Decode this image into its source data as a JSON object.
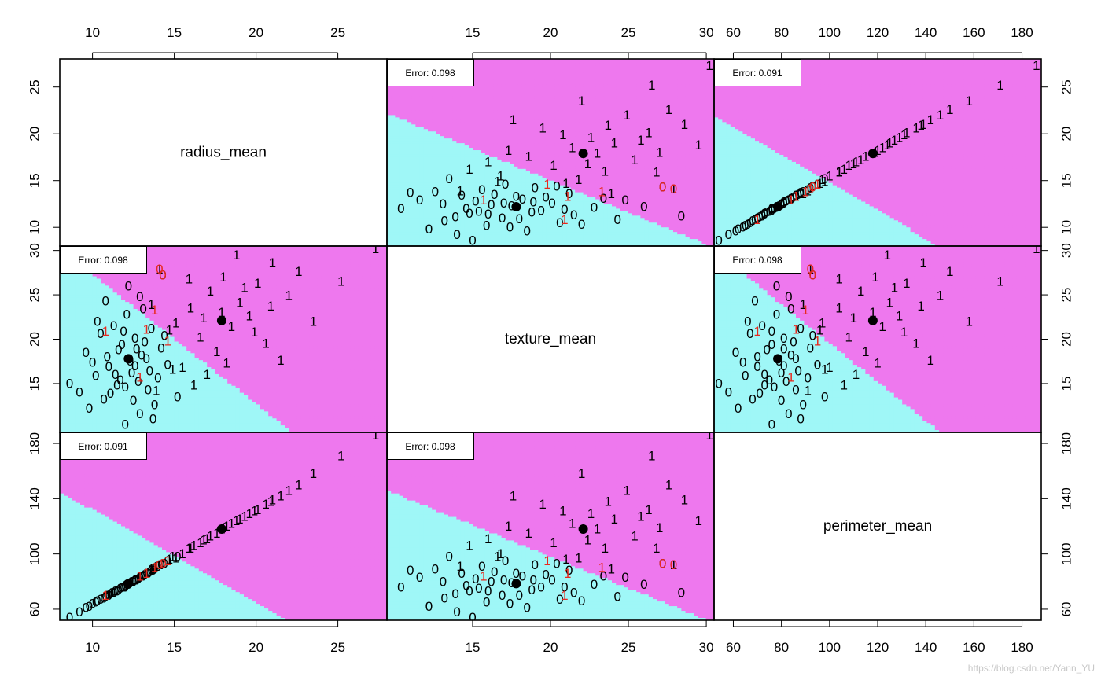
{
  "chart_data": {
    "type": "scatter",
    "subtype": "pairs-matrix-classification",
    "variables": [
      "radius_mean",
      "texture_mean",
      "perimeter_mean"
    ],
    "ranges": {
      "radius_mean": [
        8,
        28
      ],
      "texture_mean": [
        9.5,
        30.5
      ],
      "perimeter_mean": [
        52,
        188
      ]
    },
    "ticks": {
      "radius_mean": [
        10,
        15,
        20,
        25
      ],
      "texture_mean": [
        15,
        20,
        25,
        30
      ],
      "perimeter_mean": [
        60,
        80,
        100,
        120,
        140,
        160,
        180
      ],
      "perimeter_mean_left": [
        60,
        100,
        140,
        180
      ],
      "perimeter_mean_right": [
        60,
        100,
        140,
        180
      ]
    },
    "region_colors": {
      "class0": "#9ff7f7",
      "class1": "#ee78ee"
    },
    "misclassified_color": "#e8291e",
    "centroid_color": "#000000",
    "centroids": {
      "class0": {
        "radius_mean": 12.2,
        "texture_mean": 17.8,
        "perimeter_mean": 78.5
      },
      "class1": {
        "radius_mean": 17.9,
        "texture_mean": 22.1,
        "perimeter_mean": 118.0
      }
    },
    "panels": [
      {
        "row": 0,
        "col": 1,
        "x": "texture_mean",
        "y": "radius_mean",
        "error": "Error: 0.098"
      },
      {
        "row": 0,
        "col": 2,
        "x": "perimeter_mean",
        "y": "radius_mean",
        "error": "Error: 0.091"
      },
      {
        "row": 1,
        "col": 0,
        "x": "radius_mean",
        "y": "texture_mean",
        "error": "Error: 0.098"
      },
      {
        "row": 1,
        "col": 2,
        "x": "perimeter_mean",
        "y": "texture_mean",
        "error": "Error: 0.098"
      },
      {
        "row": 2,
        "col": 0,
        "x": "radius_mean",
        "y": "perimeter_mean",
        "error": "Error: 0.091"
      },
      {
        "row": 2,
        "col": 1,
        "x": "texture_mean",
        "y": "perimeter_mean",
        "error": "Error: 0.098"
      }
    ],
    "points": [
      {
        "radius_mean": 12.0,
        "texture_mean": 10.4,
        "perimeter_mean": 76.0,
        "label": "0"
      },
      {
        "radius_mean": 10.7,
        "texture_mean": 13.2,
        "perimeter_mean": 68.0,
        "label": "0"
      },
      {
        "radius_mean": 11.5,
        "texture_mean": 14.8,
        "perimeter_mean": 73.0,
        "label": "0"
      },
      {
        "radius_mean": 12.8,
        "texture_mean": 15.2,
        "perimeter_mean": 82.0,
        "label": "0"
      },
      {
        "radius_mean": 13.5,
        "texture_mean": 16.4,
        "perimeter_mean": 87.0,
        "label": "0"
      },
      {
        "radius_mean": 11.0,
        "texture_mean": 16.9,
        "perimeter_mean": 70.0,
        "label": "0"
      },
      {
        "radius_mean": 12.3,
        "texture_mean": 17.5,
        "perimeter_mean": 79.0,
        "label": "0"
      },
      {
        "radius_mean": 13.0,
        "texture_mean": 18.2,
        "perimeter_mean": 84.0,
        "label": "0"
      },
      {
        "radius_mean": 9.6,
        "texture_mean": 18.5,
        "perimeter_mean": 61.0,
        "label": "0"
      },
      {
        "radius_mean": 14.2,
        "texture_mean": 19.0,
        "perimeter_mean": 92.0,
        "label": "0"
      },
      {
        "radius_mean": 11.8,
        "texture_mean": 19.4,
        "perimeter_mean": 76.0,
        "label": "0"
      },
      {
        "radius_mean": 12.6,
        "texture_mean": 20.1,
        "perimeter_mean": 81.0,
        "label": "0"
      },
      {
        "radius_mean": 10.2,
        "texture_mean": 15.9,
        "perimeter_mean": 65.0,
        "label": "0"
      },
      {
        "radius_mean": 13.4,
        "texture_mean": 14.3,
        "perimeter_mean": 86.0,
        "label": "0"
      },
      {
        "radius_mean": 11.3,
        "texture_mean": 21.5,
        "perimeter_mean": 72.0,
        "label": "0"
      },
      {
        "radius_mean": 12.1,
        "texture_mean": 22.8,
        "perimeter_mean": 78.0,
        "label": "0"
      },
      {
        "radius_mean": 10.8,
        "texture_mean": 24.3,
        "perimeter_mean": 69.0,
        "label": "0"
      },
      {
        "radius_mean": 13.8,
        "texture_mean": 12.6,
        "perimeter_mean": 89.0,
        "label": "0"
      },
      {
        "radius_mean": 9.2,
        "texture_mean": 14.0,
        "perimeter_mean": 58.0,
        "label": "0"
      },
      {
        "radius_mean": 12.9,
        "texture_mean": 11.6,
        "perimeter_mean": 83.0,
        "label": "0"
      },
      {
        "radius_mean": 11.6,
        "texture_mean": 18.8,
        "perimeter_mean": 74.0,
        "label": "0"
      },
      {
        "radius_mean": 14.6,
        "texture_mean": 17.1,
        "perimeter_mean": 95.0,
        "label": "0"
      },
      {
        "radius_mean": 10.5,
        "texture_mean": 20.6,
        "perimeter_mean": 67.0,
        "label": "0"
      },
      {
        "radius_mean": 13.2,
        "texture_mean": 19.7,
        "perimeter_mean": 85.0,
        "label": "0"
      },
      {
        "radius_mean": 12.4,
        "texture_mean": 16.2,
        "perimeter_mean": 80.0,
        "label": "0"
      },
      {
        "radius_mean": 11.1,
        "texture_mean": 13.9,
        "perimeter_mean": 71.0,
        "label": "0"
      },
      {
        "radius_mean": 13.6,
        "texture_mean": 21.2,
        "perimeter_mean": 88.0,
        "label": "0"
      },
      {
        "radius_mean": 12.0,
        "texture_mean": 14.6,
        "perimeter_mean": 77.0,
        "label": "0"
      },
      {
        "radius_mean": 10.0,
        "texture_mean": 17.4,
        "perimeter_mean": 64.0,
        "label": "0"
      },
      {
        "radius_mean": 14.0,
        "texture_mean": 15.6,
        "perimeter_mean": 91.0,
        "label": "0"
      },
      {
        "radius_mean": 12.7,
        "texture_mean": 18.9,
        "perimeter_mean": 81.0,
        "label": "0"
      },
      {
        "radius_mean": 11.4,
        "texture_mean": 16.0,
        "perimeter_mean": 73.0,
        "label": "0"
      },
      {
        "radius_mean": 13.1,
        "texture_mean": 23.4,
        "perimeter_mean": 84.0,
        "label": "0"
      },
      {
        "radius_mean": 9.8,
        "texture_mean": 12.2,
        "perimeter_mean": 62.0,
        "label": "0"
      },
      {
        "radius_mean": 12.5,
        "texture_mean": 13.1,
        "perimeter_mean": 80.0,
        "label": "0"
      },
      {
        "radius_mean": 14.4,
        "texture_mean": 20.4,
        "perimeter_mean": 93.0,
        "label": "0"
      },
      {
        "radius_mean": 11.9,
        "texture_mean": 20.9,
        "perimeter_mean": 76.0,
        "label": "0"
      },
      {
        "radius_mean": 10.9,
        "texture_mean": 18.0,
        "perimeter_mean": 70.0,
        "label": "0"
      },
      {
        "radius_mean": 13.3,
        "texture_mean": 17.8,
        "perimeter_mean": 86.0,
        "label": "0"
      },
      {
        "radius_mean": 12.2,
        "texture_mean": 26.0,
        "perimeter_mean": 78.0,
        "label": "0"
      },
      {
        "radius_mean": 8.6,
        "texture_mean": 15.0,
        "perimeter_mean": 54.0,
        "label": "0"
      },
      {
        "radius_mean": 15.2,
        "texture_mean": 13.5,
        "perimeter_mean": 98.0,
        "label": "0"
      },
      {
        "radius_mean": 12.9,
        "texture_mean": 24.8,
        "perimeter_mean": 83.0,
        "label": "0"
      },
      {
        "radius_mean": 11.2,
        "texture_mean": 28.4,
        "perimeter_mean": 72.0,
        "label": "0"
      },
      {
        "radius_mean": 13.7,
        "texture_mean": 11.0,
        "perimeter_mean": 88.0,
        "label": "0"
      },
      {
        "radius_mean": 10.3,
        "texture_mean": 22.0,
        "perimeter_mean": 66.0,
        "label": "0"
      },
      {
        "radius_mean": 12.6,
        "texture_mean": 17.0,
        "perimeter_mean": 81.0,
        "label": "0"
      },
      {
        "radius_mean": 11.7,
        "texture_mean": 15.4,
        "perimeter_mean": 75.0,
        "label": "0"
      },
      {
        "radius_mean": 14.1,
        "texture_mean": 27.9,
        "perimeter_mean": 92.0,
        "label": "1"
      },
      {
        "radius_mean": 14.3,
        "texture_mean": 27.2,
        "perimeter_mean": 93.0,
        "label": "0"
      },
      {
        "radius_mean": 15.1,
        "texture_mean": 21.8,
        "perimeter_mean": 97.0,
        "label": "1"
      },
      {
        "radius_mean": 16.0,
        "texture_mean": 23.5,
        "perimeter_mean": 104.0,
        "label": "1"
      },
      {
        "radius_mean": 15.5,
        "texture_mean": 16.8,
        "perimeter_mean": 100.0,
        "label": "1"
      },
      {
        "radius_mean": 17.2,
        "texture_mean": 25.4,
        "perimeter_mean": 113.0,
        "label": "1"
      },
      {
        "radius_mean": 16.6,
        "texture_mean": 20.2,
        "perimeter_mean": 108.0,
        "label": "1"
      },
      {
        "radius_mean": 18.0,
        "texture_mean": 27.0,
        "perimeter_mean": 119.0,
        "label": "1"
      },
      {
        "radius_mean": 17.6,
        "texture_mean": 18.6,
        "perimeter_mean": 115.0,
        "label": "1"
      },
      {
        "radius_mean": 19.0,
        "texture_mean": 24.1,
        "perimeter_mean": 125.0,
        "label": "1"
      },
      {
        "radius_mean": 18.5,
        "texture_mean": 21.4,
        "perimeter_mean": 122.0,
        "label": "1"
      },
      {
        "radius_mean": 20.1,
        "texture_mean": 26.3,
        "perimeter_mean": 132.0,
        "label": "1"
      },
      {
        "radius_mean": 19.6,
        "texture_mean": 22.6,
        "perimeter_mean": 129.0,
        "label": "1"
      },
      {
        "radius_mean": 21.0,
        "texture_mean": 28.6,
        "perimeter_mean": 139.0,
        "label": "1"
      },
      {
        "radius_mean": 20.6,
        "texture_mean": 19.5,
        "perimeter_mean": 136.0,
        "label": "1"
      },
      {
        "radius_mean": 22.0,
        "texture_mean": 24.9,
        "perimeter_mean": 146.0,
        "label": "1"
      },
      {
        "radius_mean": 21.5,
        "texture_mean": 17.6,
        "perimeter_mean": 142.0,
        "label": "1"
      },
      {
        "radius_mean": 23.5,
        "texture_mean": 22.0,
        "perimeter_mean": 158.0,
        "label": "1"
      },
      {
        "radius_mean": 25.2,
        "texture_mean": 26.5,
        "perimeter_mean": 171.0,
        "label": "1"
      },
      {
        "radius_mean": 17.0,
        "texture_mean": 16.0,
        "perimeter_mean": 111.0,
        "label": "1"
      },
      {
        "radius_mean": 18.8,
        "texture_mean": 29.5,
        "perimeter_mean": 124.0,
        "label": "1"
      },
      {
        "radius_mean": 16.2,
        "texture_mean": 14.8,
        "perimeter_mean": 106.0,
        "label": "1"
      },
      {
        "radius_mean": 19.9,
        "texture_mean": 20.8,
        "perimeter_mean": 131.0,
        "label": "1"
      },
      {
        "radius_mean": 17.9,
        "texture_mean": 23.0,
        "perimeter_mean": 118.0,
        "label": "1"
      },
      {
        "radius_mean": 20.9,
        "texture_mean": 23.7,
        "perimeter_mean": 138.0,
        "label": "1"
      },
      {
        "radius_mean": 15.9,
        "texture_mean": 26.8,
        "perimeter_mean": 104.0,
        "label": "1"
      },
      {
        "radius_mean": 22.6,
        "texture_mean": 27.6,
        "perimeter_mean": 150.0,
        "label": "1"
      },
      {
        "radius_mean": 18.2,
        "texture_mean": 17.3,
        "perimeter_mean": 120.0,
        "label": "1"
      },
      {
        "radius_mean": 19.3,
        "texture_mean": 25.8,
        "perimeter_mean": 127.0,
        "label": "1"
      },
      {
        "radius_mean": 16.8,
        "texture_mean": 22.4,
        "perimeter_mean": 110.0,
        "label": "1"
      },
      {
        "radius_mean": 27.3,
        "texture_mean": 30.2,
        "perimeter_mean": 186.0,
        "label": "1"
      },
      {
        "radius_mean": 14.7,
        "texture_mean": 21.0,
        "perimeter_mean": 96.0,
        "label": "1"
      },
      {
        "radius_mean": 14.9,
        "texture_mean": 16.6,
        "perimeter_mean": 98.0,
        "label": "1"
      },
      {
        "radius_mean": 13.6,
        "texture_mean": 23.9,
        "perimeter_mean": 89.0,
        "label": "1"
      },
      {
        "radius_mean": 13.9,
        "texture_mean": 14.2,
        "perimeter_mean": 91.0,
        "label": "1"
      }
    ],
    "misclassified": [
      {
        "radius_mean": 14.1,
        "texture_mean": 27.9,
        "perimeter_mean": 92.0,
        "label": "0"
      },
      {
        "radius_mean": 14.3,
        "texture_mean": 27.2,
        "perimeter_mean": 93.0,
        "label": "0"
      },
      {
        "radius_mean": 13.8,
        "texture_mean": 23.3,
        "perimeter_mean": 90.0,
        "label": "1"
      },
      {
        "radius_mean": 10.8,
        "texture_mean": 20.9,
        "perimeter_mean": 70.0,
        "label": "1"
      },
      {
        "radius_mean": 13.3,
        "texture_mean": 21.1,
        "perimeter_mean": 86.0,
        "label": "1"
      },
      {
        "radius_mean": 12.9,
        "texture_mean": 15.7,
        "perimeter_mean": 84.0,
        "label": "1"
      },
      {
        "radius_mean": 14.6,
        "texture_mean": 19.8,
        "perimeter_mean": 95.0,
        "label": "1"
      }
    ]
  },
  "watermark": "https://blog.csdn.net/Yann_YU"
}
